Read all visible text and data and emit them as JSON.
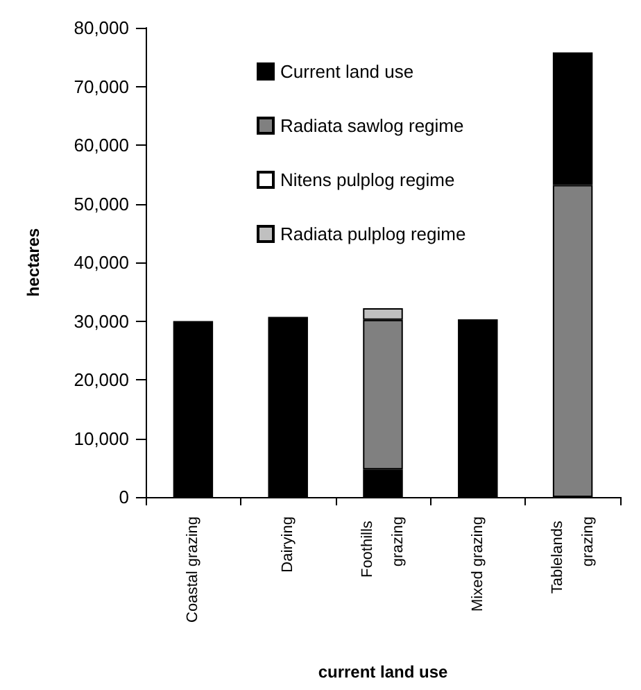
{
  "chart_data": {
    "type": "bar",
    "stacked": true,
    "xlabel": "current land use",
    "ylabel": "hectares",
    "categories": [
      "Coastal grazing",
      "Dairying",
      "Foothills grazing",
      "Mixed grazing",
      "Tablelands grazing"
    ],
    "series": [
      {
        "name": "Current land use",
        "color": "#000000",
        "values": [
          30000,
          30700,
          4700,
          30300,
          null
        ]
      },
      {
        "name": "Radiata sawlog regime",
        "color": "#808080",
        "values": [
          null,
          null,
          25500,
          null,
          53200
        ]
      },
      {
        "name": "Nitens pulplog regime",
        "color": "#ffffff",
        "values": [
          null,
          null,
          null,
          null,
          null
        ]
      },
      {
        "name": "Radiata pulplog regime",
        "color": "#c0c0c0",
        "values": [
          null,
          null,
          2000,
          null,
          null
        ]
      },
      {
        "color": "#000000",
        "values": [
          null,
          null,
          null,
          null,
          22600
        ]
      }
    ],
    "ylim": [
      0,
      80000
    ],
    "yticks": [
      0,
      {
        "value": 10000,
        "label": "10,000"
      },
      {
        "value": 20000,
        "label": "20,000"
      },
      {
        "value": 30000,
        "label": "30,000"
      },
      {
        "value": 40000,
        "label": "40,000"
      },
      {
        "value": 50000,
        "label": "50,000"
      },
      {
        "value": 60000,
        "label": "60,000"
      },
      {
        "value": 70000,
        "label": "70,000"
      },
      {
        "value": 80000,
        "label": "80,000"
      }
    ],
    "grid": false,
    "legend": "top"
  }
}
